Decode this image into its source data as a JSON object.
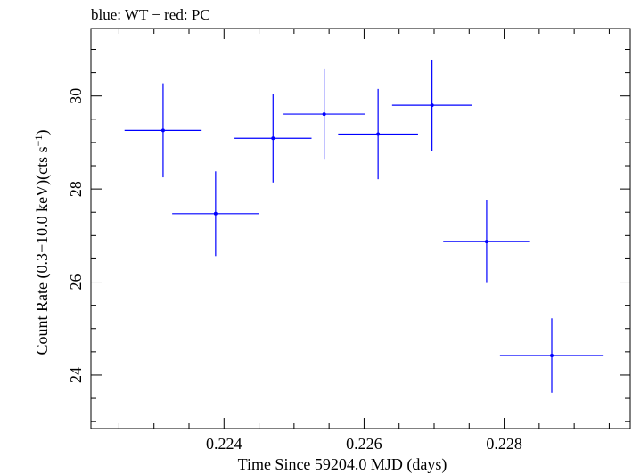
{
  "chart_data": {
    "type": "scatter",
    "title": "blue: WT − red: PC",
    "xlabel": "Time Since 59204.0 MJD (days)",
    "ylabel_main": "Count Rate (0.3−10.0 keV)(cts s",
    "ylabel_sup": "−1",
    "ylabel_end": ")",
    "xlim": [
      0.2221,
      0.2298
    ],
    "ylim": [
      22.85,
      31.45
    ],
    "x_ticks": [
      0.224,
      0.226,
      0.228
    ],
    "x_tick_labels": [
      "0.224",
      "0.226",
      "0.228"
    ],
    "y_ticks": [
      24,
      26,
      28,
      30
    ],
    "y_tick_labels": [
      "24",
      "26",
      "28",
      "30"
    ],
    "series": [
      {
        "name": "WT",
        "color": "#0000ff",
        "points": [
          {
            "x": 0.22313,
            "y": 29.26,
            "xerr": 0.00055,
            "yerr": 1.01
          },
          {
            "x": 0.22388,
            "y": 27.47,
            "xerr": 0.00062,
            "yerr": 0.91
          },
          {
            "x": 0.2247,
            "y": 29.09,
            "xerr": 0.00055,
            "yerr": 0.95
          },
          {
            "x": 0.22543,
            "y": 29.61,
            "xerr": 0.00058,
            "yerr": 0.98
          },
          {
            "x": 0.2262,
            "y": 29.18,
            "xerr": 0.00057,
            "yerr": 0.97
          },
          {
            "x": 0.22697,
            "y": 29.8,
            "xerr": 0.00057,
            "yerr": 0.98
          },
          {
            "x": 0.22775,
            "y": 26.87,
            "xerr": 0.00062,
            "yerr": 0.89
          },
          {
            "x": 0.22868,
            "y": 24.42,
            "xerr": 0.00074,
            "yerr": 0.8
          }
        ]
      }
    ]
  }
}
